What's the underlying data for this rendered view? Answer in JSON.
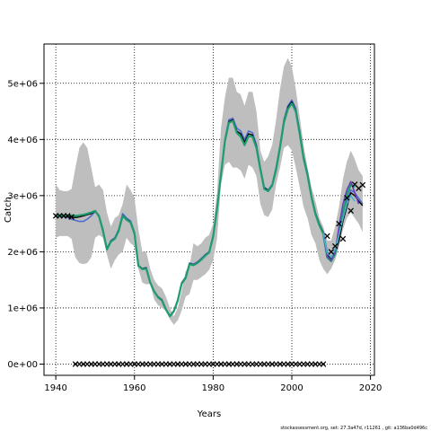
{
  "chart_data": {
    "type": "line",
    "title": "",
    "xlabel": "Years",
    "ylabel": "Catch",
    "xlim": [
      1937,
      2021
    ],
    "ylim": [
      -200000,
      5700000
    ],
    "xticks": [
      1940,
      1960,
      1980,
      2000,
      2020
    ],
    "yticks": [
      0,
      1000000,
      2000000,
      3000000,
      4000000,
      5000000
    ],
    "xtick_labels": [
      "1940",
      "1960",
      "1980",
      "2000",
      "2020"
    ],
    "ytick_labels": [
      "0e+00",
      "1e+06",
      "2e+06",
      "3e+06",
      "4e+06",
      "5e+06"
    ],
    "grid": true,
    "footer": "stockassessment.org, set: 27.3a47d, r11261 , git: a136ba0d496c",
    "colors": {
      "band": "#bebebe",
      "line_green": "#1e9e6e",
      "line_black": "#000000",
      "line_blue": "#4f6ccf",
      "line_purple": "#6a3fb8",
      "line_cyan": "#4ab0c8",
      "observed": "#000000"
    },
    "confidence_band": {
      "x": [
        1940,
        1941,
        1942,
        1943,
        1944,
        1945,
        1946,
        1947,
        1948,
        1949,
        1950,
        1951,
        1952,
        1953,
        1954,
        1955,
        1956,
        1957,
        1958,
        1959,
        1960,
        1961,
        1962,
        1963,
        1964,
        1965,
        1966,
        1967,
        1968,
        1969,
        1970,
        1971,
        1972,
        1973,
        1974,
        1975,
        1976,
        1977,
        1978,
        1979,
        1980,
        1981,
        1982,
        1983,
        1984,
        1985,
        1986,
        1987,
        1988,
        1989,
        1990,
        1991,
        1992,
        1993,
        1994,
        1995,
        1996,
        1997,
        1998,
        1999,
        2000,
        2001,
        2002,
        2003,
        2004,
        2005,
        2006,
        2007,
        2008,
        2009,
        2010,
        2011,
        2012,
        2013,
        2014,
        2015,
        2016,
        2017,
        2018
      ],
      "upper": [
        3200000,
        3100000,
        3080000,
        3080000,
        3120000,
        3500000,
        3850000,
        3950000,
        3850000,
        3500000,
        3150000,
        3200000,
        3100000,
        2700000,
        2450000,
        2600000,
        2650000,
        2850000,
        3200000,
        3100000,
        2950000,
        2400000,
        2000000,
        2000000,
        1700000,
        1500000,
        1400000,
        1350000,
        1200000,
        1000000,
        850000,
        1000000,
        1300000,
        1650000,
        1750000,
        2150000,
        2100000,
        2150000,
        2250000,
        2300000,
        2500000,
        3050000,
        4200000,
        4750000,
        5100000,
        5100000,
        4850000,
        4800000,
        4600000,
        4850000,
        4850000,
        4500000,
        3800000,
        3600000,
        3700000,
        3900000,
        4350000,
        4900000,
        5300000,
        5450000,
        5300000,
        4900000,
        4400000,
        3900000,
        3500000,
        3150000,
        2900000,
        2600000,
        2450000,
        2200000,
        2200000,
        2450000,
        2800000,
        3300000,
        3600000,
        3800000,
        3650000,
        3450000,
        3350000
      ],
      "lower": [
        2250000,
        2280000,
        2280000,
        2280000,
        2230000,
        1900000,
        1800000,
        1780000,
        1800000,
        1900000,
        2250000,
        2300000,
        2250000,
        1950000,
        1700000,
        1850000,
        1950000,
        2000000,
        2250000,
        2150000,
        2100000,
        1700000,
        1450000,
        1420000,
        1430000,
        1150000,
        1050000,
        1000000,
        950000,
        800000,
        700000,
        780000,
        950000,
        1200000,
        1250000,
        1500000,
        1500000,
        1550000,
        1600000,
        1680000,
        1850000,
        2250000,
        3200000,
        3550000,
        3600000,
        3500000,
        3500000,
        3450000,
        3300000,
        3550000,
        3500000,
        3350000,
        2850000,
        2650000,
        2620000,
        2750000,
        3200000,
        3500000,
        3850000,
        3900000,
        3800000,
        3500000,
        3150000,
        2800000,
        2600000,
        2300000,
        2150000,
        1850000,
        1700000,
        1600000,
        1700000,
        1850000,
        2100000,
        2400000,
        2600000,
        2700000,
        2600000,
        2500000,
        2350000
      ]
    },
    "series": [
      {
        "x": [
          1940,
          1941,
          1942,
          1943,
          1944,
          1945,
          1946,
          1947,
          1948,
          1949,
          1950,
          1951,
          1952,
          1953,
          1954,
          1955,
          1956,
          1957,
          1958,
          1959,
          1960,
          1961,
          1962,
          1963,
          1964,
          1965,
          1966,
          1967,
          1968,
          1969,
          1970,
          1971,
          1972,
          1973,
          1974,
          1975,
          1976,
          1977,
          1978,
          1979,
          1980,
          1981,
          1982,
          1983,
          1984,
          1985,
          1986,
          1987,
          1988,
          1989,
          1990,
          1991,
          1992,
          1993,
          1994,
          1995,
          1996,
          1997,
          1998,
          1999,
          2000,
          2001,
          2002,
          2003,
          2004,
          2005,
          2006,
          2007,
          2008,
          2009,
          2010,
          2011,
          2012,
          2013,
          2014,
          2015,
          2016,
          2017,
          2018
        ],
        "values": [
          2650000,
          2640000,
          2630000,
          2610000,
          2580000,
          2560000,
          2540000,
          2540000,
          2580000,
          2640000,
          2720000,
          2650000,
          2400000,
          2050000,
          2200000,
          2250000,
          2400000,
          2680000,
          2600000,
          2550000,
          2350000,
          1750000,
          1700000,
          1720000,
          1450000,
          1300000,
          1200000,
          1150000,
          980000,
          850000,
          950000,
          1150000,
          1450000,
          1550000,
          1800000,
          1780000,
          1820000,
          1880000,
          1950000,
          2000000,
          2300000,
          2800000,
          3400000,
          4000000,
          4350000,
          4380000,
          4200000,
          4150000,
          4000000,
          4150000,
          4120000,
          3900000,
          3500000,
          3150000,
          3100000,
          3200000,
          3500000,
          3900000,
          4350000,
          4600000,
          4700000,
          4550000,
          4150000,
          3700000,
          3400000,
          3000000,
          2700000,
          2500000,
          2350000,
          2000000,
          1900000,
          2000000,
          2300000,
          2650000,
          2900000,
          3100000,
          3050000,
          2950000,
          2850000
        ]
      },
      {
        "x": [
          1940,
          1941,
          1942,
          1943,
          1944,
          1945,
          1946,
          1947,
          1948,
          1949,
          1950,
          1951,
          1952,
          1953,
          1954,
          1955,
          1956,
          1957,
          1958,
          1959,
          1960,
          1961,
          1962,
          1963,
          1964,
          1965,
          1966,
          1967,
          1968,
          1969,
          1970,
          1971,
          1972,
          1973,
          1974,
          1975,
          1976,
          1977,
          1978,
          1979,
          1980,
          1981,
          1982,
          1983,
          1984,
          1985,
          1986,
          1987,
          1988,
          1989,
          1990,
          1991,
          1992,
          1993,
          1994,
          1995,
          1996,
          1997,
          1998,
          1999,
          2000,
          2001,
          2002,
          2003,
          2004,
          2005,
          2006,
          2007,
          2008,
          2009,
          2010,
          2011,
          2012,
          2013,
          2014,
          2015,
          2016,
          2017,
          2018
        ],
        "values": [
          2640000,
          2645000,
          2640000,
          2630000,
          2620000,
          2610000,
          2620000,
          2640000,
          2660000,
          2680000,
          2720000,
          2620000,
          2380000,
          2060000,
          2190000,
          2240000,
          2380000,
          2650000,
          2580000,
          2530000,
          2330000,
          1760000,
          1700000,
          1710000,
          1460000,
          1300000,
          1200000,
          1140000,
          980000,
          860000,
          950000,
          1140000,
          1440000,
          1540000,
          1790000,
          1770000,
          1810000,
          1870000,
          1940000,
          2000000,
          2280000,
          2780000,
          3380000,
          3980000,
          4320000,
          4350000,
          4150000,
          4100000,
          3950000,
          4100000,
          4080000,
          3880000,
          3480000,
          3140000,
          3090000,
          3190000,
          3480000,
          3880000,
          4320000,
          4570000,
          4670000,
          4520000,
          4130000,
          3680000,
          3380000,
          2990000,
          2690000,
          2490000,
          2340000,
          1960000,
          1870000,
          1970000,
          2200000,
          2550000,
          2800000,
          3050000,
          3000000,
          2900000,
          2820000
        ]
      },
      {
        "x": [
          1940,
          1941,
          1942,
          1943,
          1944,
          1945,
          1946,
          1947,
          1948,
          1949,
          1950,
          1951,
          1952,
          1953,
          1954,
          1955,
          1956,
          1957,
          1958,
          1959,
          1960,
          1961,
          1962,
          1963,
          1964,
          1965,
          1966,
          1967,
          1968,
          1969,
          1970,
          1971,
          1972,
          1973,
          1974,
          1975,
          1976,
          1977,
          1978,
          1979,
          1980,
          1981,
          1982,
          1983,
          1984,
          1985,
          1986,
          1987,
          1988,
          1989,
          1990,
          1991,
          1992,
          1993,
          1994,
          1995,
          1996,
          1997,
          1998,
          1999,
          2000,
          2001,
          2002,
          2003,
          2004,
          2005,
          2006,
          2007,
          2008,
          2009,
          2010,
          2011,
          2012,
          2013,
          2014,
          2015,
          2016
        ],
        "values": [
          2630000,
          2650000,
          2650000,
          2650000,
          2650000,
          2640000,
          2650000,
          2660000,
          2680000,
          2700000,
          2730000,
          2630000,
          2370000,
          2040000,
          2180000,
          2230000,
          2370000,
          2640000,
          2570000,
          2520000,
          2320000,
          1750000,
          1690000,
          1700000,
          1450000,
          1290000,
          1190000,
          1130000,
          970000,
          850000,
          940000,
          1130000,
          1430000,
          1530000,
          1780000,
          1760000,
          1800000,
          1860000,
          1930000,
          1990000,
          2270000,
          2770000,
          3370000,
          3970000,
          4300000,
          4330000,
          4120000,
          4050000,
          3900000,
          4060000,
          4050000,
          3850000,
          3460000,
          3120000,
          3080000,
          3180000,
          3460000,
          3860000,
          4300000,
          4540000,
          4640000,
          4500000,
          4100000,
          3660000,
          3360000,
          2970000,
          2670000,
          2470000,
          2320000,
          1900000,
          1830000,
          1950000,
          2350000,
          2700000,
          3000000,
          3200000,
          3150000
        ]
      },
      {
        "x": [
          2008,
          2009,
          2010,
          2011,
          2012,
          2013,
          2014,
          2015,
          2016,
          2017
        ],
        "values": [
          2320000,
          1920000,
          1850000,
          2000000,
          2450000,
          2850000,
          3100000,
          3250000,
          3050000,
          2850000
        ]
      },
      {
        "x": [
          2008,
          2009,
          2010,
          2011,
          2012,
          2013,
          2014,
          2015,
          2016
        ],
        "values": [
          2330000,
          1980000,
          1900000,
          2050000,
          2300000,
          2600000,
          2850000,
          3000000,
          2900000
        ]
      }
    ],
    "observed": {
      "x": [
        1940,
        1941,
        1942,
        1943,
        1944,
        2009,
        2010,
        2011,
        2012,
        2013,
        2014,
        2015,
        2016,
        2017,
        2018
      ],
      "values": [
        2640000,
        2640000,
        2640000,
        2640000,
        2620000,
        2280000,
        2000000,
        2100000,
        2500000,
        2230000,
        2960000,
        2730000,
        3200000,
        3130000,
        3190000
      ]
    },
    "zero_observations": {
      "x": [
        1945,
        1946,
        1947,
        1948,
        1949,
        1950,
        1951,
        1952,
        1953,
        1954,
        1955,
        1956,
        1957,
        1958,
        1959,
        1960,
        1961,
        1962,
        1963,
        1964,
        1965,
        1966,
        1967,
        1968,
        1969,
        1970,
        1971,
        1972,
        1973,
        1974,
        1975,
        1976,
        1977,
        1978,
        1979,
        1980,
        1981,
        1982,
        1983,
        1984,
        1985,
        1986,
        1987,
        1988,
        1989,
        1990,
        1991,
        1992,
        1993,
        1994,
        1995,
        1996,
        1997,
        1998,
        1999,
        2000,
        2001,
        2002,
        2003,
        2004,
        2005,
        2006,
        2007,
        2008
      ],
      "value": 0
    }
  }
}
